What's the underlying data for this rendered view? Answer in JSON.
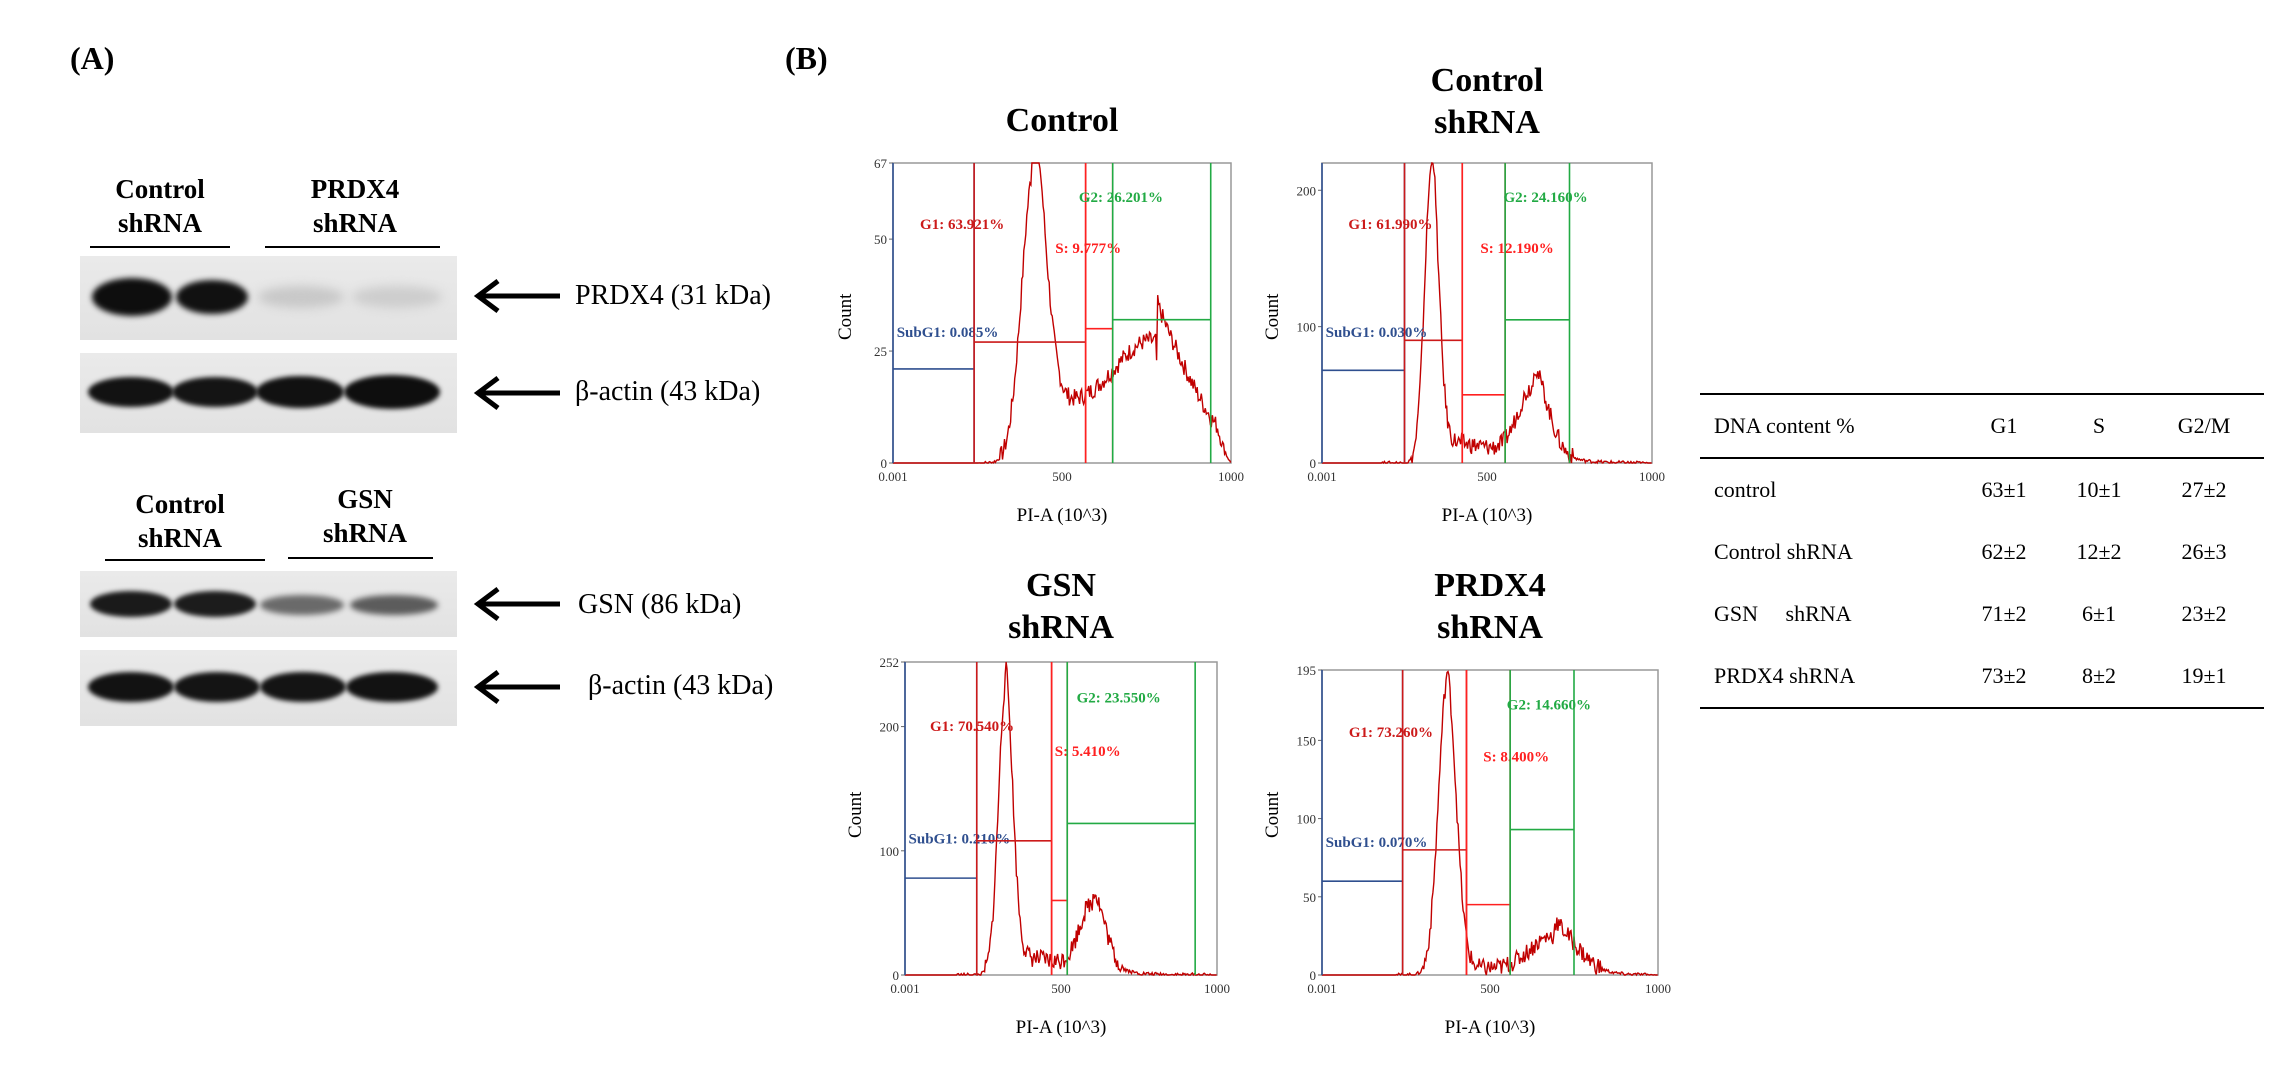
{
  "panels": {
    "a": "(A)",
    "b": "(B)"
  },
  "western_blot": {
    "top": {
      "header_left": [
        "Control",
        "shRNA"
      ],
      "header_right": [
        "PRDX4",
        "shRNA"
      ],
      "target_label": "PRDX4 (31 kDa)",
      "loading_label": "β-actin (43 kDa)"
    },
    "bottom": {
      "header_left": [
        "Control",
        "shRNA"
      ],
      "header_right": [
        "GSN",
        "shRNA"
      ],
      "target_label": "GSN (86 kDa)",
      "loading_label": "β-actin (43 kDa)"
    }
  },
  "chart_data": [
    {
      "type": "area",
      "title": "Control",
      "xlabel": "PI-A (10^3)",
      "ylabel": "Count",
      "xlim": [
        0.001,
        1000
      ],
      "ylim": [
        0,
        67
      ],
      "y_ticks": [
        "0",
        "25",
        "50",
        "67"
      ],
      "x_ticks": [
        "0.001",
        "500",
        "1000"
      ],
      "gates": [
        {
          "name": "SubG1",
          "label": "SubG1: 0.085%",
          "value": 0.085,
          "range": [
            0.001,
            240
          ],
          "level": 21
        },
        {
          "name": "G1",
          "label": "G1: 63.921%",
          "value": 63.921,
          "range": [
            240,
            570
          ],
          "level": 27
        },
        {
          "name": "S",
          "label": "S: 9.777%",
          "value": 9.777,
          "range": [
            570,
            650
          ],
          "level": 30
        },
        {
          "name": "G2",
          "label": "G2: 26.201%",
          "value": 26.201,
          "range": [
            650,
            940
          ],
          "level": 32
        }
      ]
    },
    {
      "type": "area",
      "title": "Control shRNA",
      "xlabel": "PI-A (10^3)",
      "ylabel": "Count",
      "xlim": [
        0.001,
        1000
      ],
      "ylim": [
        0,
        220
      ],
      "y_ticks": [
        "0",
        "100",
        "200"
      ],
      "x_ticks": [
        "0.001",
        "500",
        "1000"
      ],
      "gates": [
        {
          "name": "SubG1",
          "label": "SubG1: 0.030%",
          "value": 0.03,
          "range": [
            0.001,
            250
          ],
          "level": 68
        },
        {
          "name": "G1",
          "label": "G1: 61.990%",
          "value": 61.99,
          "range": [
            250,
            425
          ],
          "level": 90
        },
        {
          "name": "S",
          "label": "S: 12.190%",
          "value": 12.19,
          "range": [
            425,
            555
          ],
          "level": 50
        },
        {
          "name": "G2",
          "label": "G2: 24.160%",
          "value": 24.16,
          "range": [
            555,
            750
          ],
          "level": 105
        }
      ]
    },
    {
      "type": "area",
      "title": "GSN shRNA",
      "xlabel": "PI-A (10^3)",
      "ylabel": "Count",
      "xlim": [
        0.001,
        1000
      ],
      "ylim": [
        0,
        252
      ],
      "y_ticks": [
        "0",
        "100",
        "200",
        "252"
      ],
      "x_ticks": [
        "0.001",
        "500",
        "1000"
      ],
      "gates": [
        {
          "name": "SubG1",
          "label": "SubG1: 0.210%",
          "value": 0.21,
          "range": [
            0.001,
            230
          ],
          "level": 78
        },
        {
          "name": "G1",
          "label": "G1: 70.540%",
          "value": 70.54,
          "range": [
            230,
            470
          ],
          "level": 108
        },
        {
          "name": "S",
          "label": "S: 5.410%",
          "value": 5.41,
          "range": [
            470,
            520
          ],
          "level": 60
        },
        {
          "name": "G2",
          "label": "G2: 23.550%",
          "value": 23.55,
          "range": [
            520,
            930
          ],
          "level": 122
        }
      ]
    },
    {
      "type": "area",
      "title": "PRDX4 shRNA",
      "xlabel": "PI-A (10^3)",
      "ylabel": "Count",
      "xlim": [
        0.001,
        1000
      ],
      "ylim": [
        0,
        195
      ],
      "y_ticks": [
        "0",
        "50",
        "100",
        "150",
        "195"
      ],
      "x_ticks": [
        "0.001",
        "500",
        "1000"
      ],
      "gates": [
        {
          "name": "SubG1",
          "label": "SubG1: 0.070%",
          "value": 0.07,
          "range": [
            0.001,
            240
          ],
          "level": 60
        },
        {
          "name": "G1",
          "label": "G1: 73.260%",
          "value": 73.26,
          "range": [
            240,
            430
          ],
          "level": 80
        },
        {
          "name": "S",
          "label": "S: 8.400%",
          "value": 8.4,
          "range": [
            430,
            560
          ],
          "level": 45
        },
        {
          "name": "G2",
          "label": "G2: 14.660%",
          "value": 14.66,
          "range": [
            560,
            750
          ],
          "level": 93
        }
      ]
    },
    {
      "type": "table",
      "headers": [
        "DNA content %",
        "G1",
        "S",
        "G2/M"
      ],
      "rows": [
        [
          "control",
          "63±1",
          "10±1",
          "27±2"
        ],
        [
          "Control shRNA",
          "62±2",
          "12±2",
          "26±3"
        ],
        [
          "GSN     shRNA",
          "71±2",
          "6±1",
          "23±2"
        ],
        [
          "PRDX4 shRNA",
          "73±2",
          "8±2",
          "19±1"
        ]
      ]
    }
  ],
  "colors": {
    "subg1": "#2f4f8f",
    "g1": "#cc1a1a",
    "s": "#ff2020",
    "g2": "#22aa44",
    "histogram": "#c00000",
    "frame": "#999999"
  }
}
